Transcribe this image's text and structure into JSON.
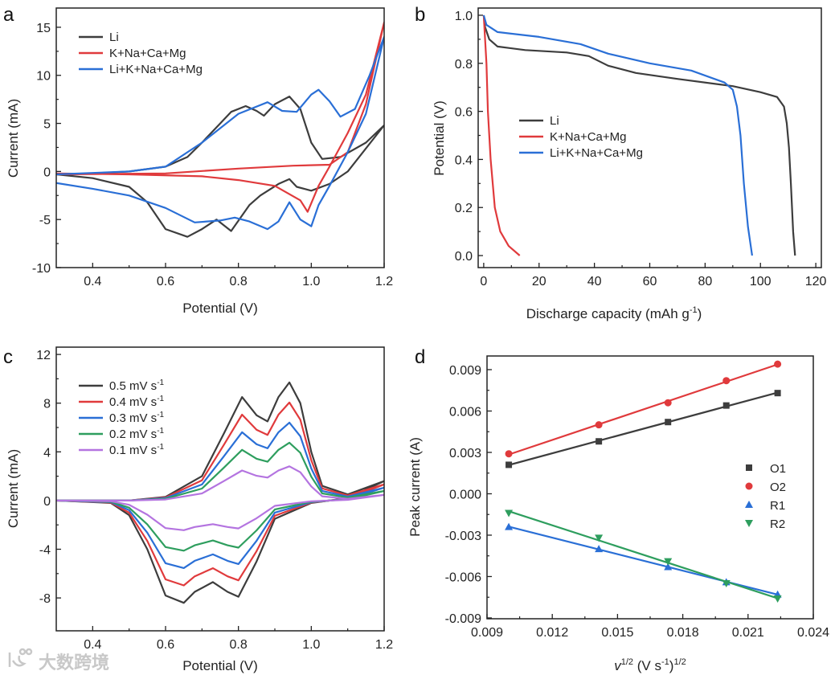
{
  "watermark": "大数跨境",
  "chart_data": [
    {
      "panel": "a",
      "type": "line",
      "xlabel": "Potential (V)",
      "ylabel": "Current (mA)",
      "xlim": [
        0.3,
        1.2
      ],
      "ylim": [
        -10,
        17
      ],
      "xticks": [
        "0.4",
        "0.6",
        "0.8",
        "1.0",
        "1.2"
      ],
      "xtick_values": [
        0.4,
        0.6,
        0.8,
        1.0,
        1.2
      ],
      "yticks": [
        "-10",
        "-5",
        "0",
        "5",
        "10",
        "15"
      ],
      "ytick_values": [
        -10,
        -5,
        0,
        5,
        10,
        15
      ],
      "legend_position": "top-left",
      "series": [
        {
          "name": "Li",
          "color": "#3d3d3d",
          "points": [
            [
              0.3,
              -0.3
            ],
            [
              0.4,
              -0.2
            ],
            [
              0.5,
              0
            ],
            [
              0.6,
              0.5
            ],
            [
              0.66,
              1.5
            ],
            [
              0.7,
              3
            ],
            [
              0.75,
              5
            ],
            [
              0.78,
              6.2
            ],
            [
              0.82,
              6.8
            ],
            [
              0.85,
              6.3
            ],
            [
              0.87,
              5.8
            ],
            [
              0.9,
              7
            ],
            [
              0.94,
              7.8
            ],
            [
              0.97,
              6.5
            ],
            [
              1.0,
              3
            ],
            [
              1.03,
              1.3
            ],
            [
              1.08,
              1.5
            ],
            [
              1.15,
              3
            ],
            [
              1.2,
              4.8
            ],
            [
              1.1,
              0
            ],
            [
              1.05,
              -1.3
            ],
            [
              1.0,
              -2
            ],
            [
              0.96,
              -1.6
            ],
            [
              0.94,
              -0.8
            ],
            [
              0.91,
              -1.3
            ],
            [
              0.86,
              -2.5
            ],
            [
              0.83,
              -3.5
            ],
            [
              0.78,
              -6.2
            ],
            [
              0.74,
              -5
            ],
            [
              0.7,
              -6
            ],
            [
              0.66,
              -6.8
            ],
            [
              0.6,
              -6
            ],
            [
              0.55,
              -3.2
            ],
            [
              0.5,
              -1.6
            ],
            [
              0.4,
              -0.7
            ],
            [
              0.3,
              -0.3
            ]
          ]
        },
        {
          "name": "K+Na+Ca+Mg",
          "color": "#e03a3c",
          "points": [
            [
              0.3,
              -0.3
            ],
            [
              0.6,
              -0.2
            ],
            [
              0.8,
              0.3
            ],
            [
              0.95,
              0.6
            ],
            [
              1.05,
              0.7
            ],
            [
              1.1,
              2
            ],
            [
              1.15,
              7
            ],
            [
              1.2,
              15.5
            ],
            [
              1.15,
              8
            ],
            [
              1.1,
              4
            ],
            [
              1.05,
              0.5
            ],
            [
              1.02,
              -1.5
            ],
            [
              0.99,
              -4.2
            ],
            [
              0.97,
              -3
            ],
            [
              0.9,
              -1.5
            ],
            [
              0.8,
              -0.9
            ],
            [
              0.7,
              -0.5
            ],
            [
              0.5,
              -0.3
            ],
            [
              0.3,
              -0.2
            ]
          ]
        },
        {
          "name": "Li+K+Na+Ca+Mg",
          "color": "#2a6fd6",
          "points": [
            [
              0.3,
              -0.3
            ],
            [
              0.5,
              0
            ],
            [
              0.6,
              0.5
            ],
            [
              0.7,
              3
            ],
            [
              0.8,
              6
            ],
            [
              0.88,
              7.2
            ],
            [
              0.92,
              6.3
            ],
            [
              0.96,
              6.2
            ],
            [
              1.0,
              8
            ],
            [
              1.02,
              8.5
            ],
            [
              1.05,
              7.3
            ],
            [
              1.08,
              5.7
            ],
            [
              1.12,
              6.5
            ],
            [
              1.16,
              10
            ],
            [
              1.2,
              14
            ],
            [
              1.15,
              6
            ],
            [
              1.1,
              2
            ],
            [
              1.05,
              -1.5
            ],
            [
              1.02,
              -3.5
            ],
            [
              1.0,
              -5.7
            ],
            [
              0.97,
              -5
            ],
            [
              0.94,
              -3.2
            ],
            [
              0.91,
              -5.2
            ],
            [
              0.88,
              -6
            ],
            [
              0.83,
              -5.2
            ],
            [
              0.79,
              -4.8
            ],
            [
              0.75,
              -5.1
            ],
            [
              0.68,
              -5.3
            ],
            [
              0.6,
              -3.8
            ],
            [
              0.5,
              -2.5
            ],
            [
              0.4,
              -1.8
            ],
            [
              0.3,
              -1.2
            ]
          ]
        }
      ]
    },
    {
      "panel": "b",
      "type": "line",
      "xlabel": "Discharge capacity (mAh  g",
      "xlabel_sup": "-1",
      "xlabel_end": ")",
      "ylabel": "Potential (V)",
      "xlim": [
        -2,
        122
      ],
      "ylim": [
        -0.05,
        1.03
      ],
      "xticks": [
        "0",
        "20",
        "40",
        "60",
        "80",
        "100",
        "120"
      ],
      "xtick_values": [
        0,
        20,
        40,
        60,
        80,
        100,
        120
      ],
      "yticks": [
        "0.0",
        "0.2",
        "0.4",
        "0.6",
        "0.8",
        "1.0"
      ],
      "ytick_values": [
        0,
        0.2,
        0.4,
        0.6,
        0.8,
        1.0
      ],
      "legend_position": "center-left",
      "series": [
        {
          "name": "Li",
          "color": "#3d3d3d",
          "points": [
            [
              0,
              1.0
            ],
            [
              0.5,
              0.95
            ],
            [
              2,
              0.9
            ],
            [
              5,
              0.87
            ],
            [
              15,
              0.855
            ],
            [
              30,
              0.845
            ],
            [
              38,
              0.83
            ],
            [
              45,
              0.79
            ],
            [
              55,
              0.76
            ],
            [
              70,
              0.735
            ],
            [
              90,
              0.705
            ],
            [
              100,
              0.68
            ],
            [
              106,
              0.66
            ],
            [
              108.5,
              0.62
            ],
            [
              109.5,
              0.55
            ],
            [
              110.3,
              0.45
            ],
            [
              111,
              0.3
            ],
            [
              111.8,
              0.1
            ],
            [
              112.5,
              0
            ]
          ]
        },
        {
          "name": "K+Na+Ca+Mg",
          "color": "#e03a3c",
          "points": [
            [
              0,
              1.0
            ],
            [
              0.5,
              0.9
            ],
            [
              1,
              0.8
            ],
            [
              1.5,
              0.6
            ],
            [
              2.5,
              0.4
            ],
            [
              4,
              0.2
            ],
            [
              6,
              0.1
            ],
            [
              9,
              0.04
            ],
            [
              13,
              0
            ]
          ]
        },
        {
          "name": "Li+K+Na+Ca+Mg",
          "color": "#2a6fd6",
          "points": [
            [
              0,
              1.0
            ],
            [
              1,
              0.96
            ],
            [
              5,
              0.93
            ],
            [
              20,
              0.91
            ],
            [
              35,
              0.88
            ],
            [
              45,
              0.84
            ],
            [
              60,
              0.8
            ],
            [
              75,
              0.77
            ],
            [
              87,
              0.72
            ],
            [
              90,
              0.69
            ],
            [
              91.5,
              0.62
            ],
            [
              92.8,
              0.5
            ],
            [
              94,
              0.3
            ],
            [
              95.5,
              0.12
            ],
            [
              97,
              0
            ]
          ]
        }
      ]
    },
    {
      "panel": "c",
      "type": "line",
      "xlabel": "Potential (V)",
      "ylabel": "Current (mA)",
      "xlim": [
        0.3,
        1.2
      ],
      "ylim": [
        -10.7,
        12.6
      ],
      "xticks": [
        "0.4",
        "0.6",
        "0.8",
        "1.0",
        "1.2"
      ],
      "xtick_values": [
        0.4,
        0.6,
        0.8,
        1.0,
        1.2
      ],
      "yticks": [
        "-8",
        "-4",
        "0",
        "4",
        "8",
        "12"
      ],
      "ytick_values": [
        -8,
        -4,
        0,
        4,
        8,
        12
      ],
      "legend_position": "top-left",
      "base_curve_0p5": [
        [
          0.3,
          0
        ],
        [
          0.5,
          0
        ],
        [
          0.6,
          0.3
        ],
        [
          0.7,
          2
        ],
        [
          0.76,
          5.5
        ],
        [
          0.81,
          8.5
        ],
        [
          0.85,
          7
        ],
        [
          0.88,
          6.5
        ],
        [
          0.91,
          8.5
        ],
        [
          0.94,
          9.7
        ],
        [
          0.97,
          8
        ],
        [
          1.0,
          4
        ],
        [
          1.03,
          1.2
        ],
        [
          1.1,
          0.5
        ],
        [
          1.2,
          1.6
        ],
        [
          1.1,
          0.2
        ],
        [
          1.0,
          -0.2
        ],
        [
          0.9,
          -1.5
        ],
        [
          0.85,
          -5
        ],
        [
          0.8,
          -7.9
        ],
        [
          0.77,
          -7.5
        ],
        [
          0.73,
          -6.7
        ],
        [
          0.68,
          -7.5
        ],
        [
          0.65,
          -8.4
        ],
        [
          0.6,
          -7.8
        ],
        [
          0.55,
          -4
        ],
        [
          0.5,
          -1.2
        ],
        [
          0.45,
          -0.2
        ],
        [
          0.3,
          0
        ]
      ],
      "series": [
        {
          "name": "0.5 mV s",
          "sup": "-1",
          "color": "#3d3d3d",
          "scale": 1.0
        },
        {
          "name": "0.4 mV s",
          "sup": "-1",
          "color": "#e03a3c",
          "scale": 0.83
        },
        {
          "name": "0.3 mV s",
          "sup": "-1",
          "color": "#2a6fd6",
          "scale": 0.66
        },
        {
          "name": "0.2 mV s",
          "sup": "-1",
          "color": "#2e9e5e",
          "scale": 0.49
        },
        {
          "name": "0.1 mV s",
          "sup": "-1",
          "color": "#b474e0",
          "scale": 0.29
        }
      ]
    },
    {
      "panel": "d",
      "type": "scatter",
      "xlabel": "v",
      "xlabel_sup1": "1/2",
      "xlabel_mid": " (V s",
      "xlabel_sup2": "-1",
      "xlabel_end": ")",
      "xlabel_sup3": "1/2",
      "ylabel": "Peak current (A)",
      "xlim": [
        0.009,
        0.024
      ],
      "ylim": [
        -0.00906,
        0.00999
      ],
      "xticks": [
        "0.009",
        "0.012",
        "0.015",
        "0.018",
        "0.021",
        "0.024"
      ],
      "xtick_values": [
        0.009,
        0.012,
        0.015,
        0.018,
        0.021,
        0.024
      ],
      "yticks": [
        "-0.009",
        "-0.006",
        "-0.003",
        "0.000",
        "0.003",
        "0.006",
        "0.009"
      ],
      "ytick_values": [
        -0.009,
        -0.006,
        -0.003,
        0,
        0.003,
        0.006,
        0.009
      ],
      "legend_position": "center-right",
      "x": [
        0.01,
        0.01414,
        0.01732,
        0.02,
        0.02236
      ],
      "series": [
        {
          "name": "O1",
          "marker": "square",
          "color": "#3d3d3d",
          "values": [
            0.0021,
            0.0038,
            0.0052,
            0.0064,
            0.0073
          ]
        },
        {
          "name": "O2",
          "marker": "circle",
          "color": "#e03a3c",
          "values": [
            0.0029,
            0.005,
            0.0066,
            0.0082,
            0.0094
          ]
        },
        {
          "name": "R1",
          "marker": "triangle-up",
          "color": "#2a6fd6",
          "values": [
            -0.0024,
            -0.004,
            -0.0053,
            -0.0064,
            -0.0073
          ]
        },
        {
          "name": "R2",
          "marker": "triangle-down",
          "color": "#2e9e5e",
          "values": [
            -0.0014,
            -0.0032,
            -0.0049,
            -0.0065,
            -0.0076
          ]
        }
      ]
    }
  ]
}
